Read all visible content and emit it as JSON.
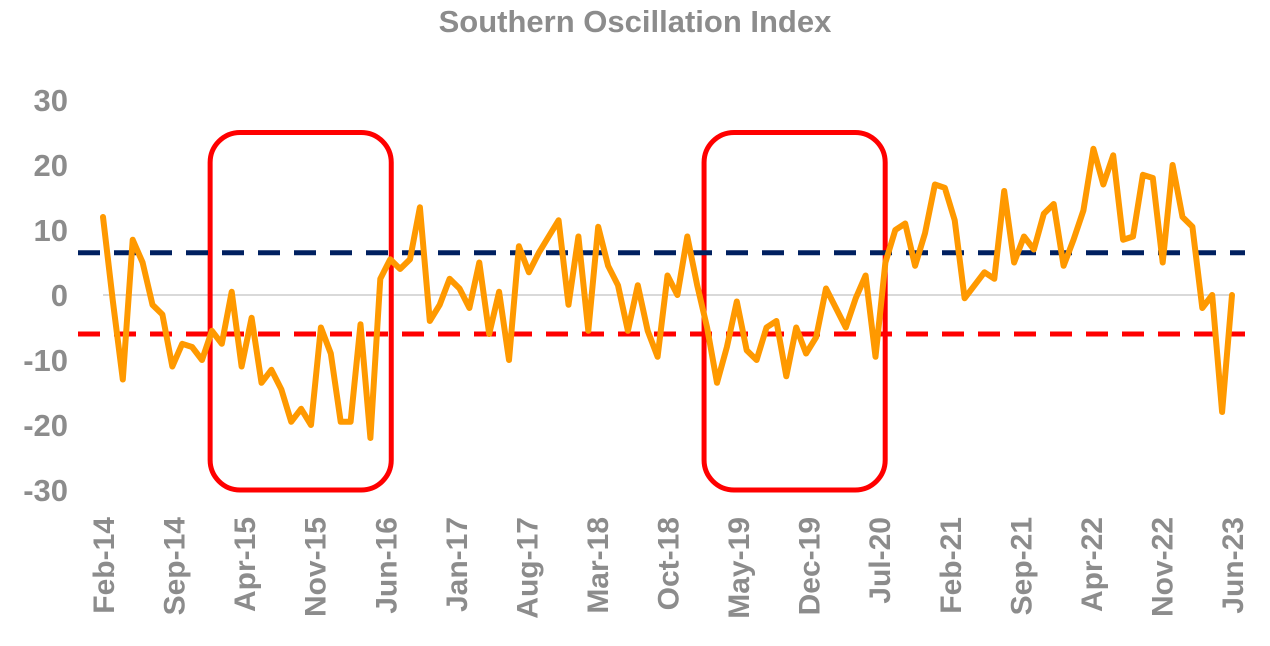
{
  "chart_data": {
    "type": "line",
    "title": "Southern Oscillation Index",
    "xlabel": "",
    "ylabel": "",
    "ylim": [
      -30,
      30
    ],
    "y_ticks": [
      30,
      20,
      10,
      0,
      -10,
      -20,
      -30
    ],
    "x_tick_labels": [
      "Feb-14",
      "Sep-14",
      "Apr-15",
      "Nov-15",
      "Jun-16",
      "Jan-17",
      "Aug-17",
      "Mar-18",
      "Oct-18",
      "May-19",
      "Dec-19",
      "Jul-20",
      "Feb-21",
      "Sep-21",
      "Apr-22",
      "Nov-22",
      "Jun-23"
    ],
    "x_start": "Feb-14",
    "x_end": "Jun-23",
    "grid": false,
    "legend": "none",
    "series": [
      {
        "color": "#FF9900",
        "values": [
          12,
          -1,
          -13,
          8.5,
          5,
          -1.5,
          -3,
          -11,
          -7.5,
          -8,
          -10,
          -5.5,
          -7.5,
          0.5,
          -11,
          -3.5,
          -13.5,
          -11.5,
          -14.5,
          -19.5,
          -17.5,
          -20,
          -5,
          -9,
          -19.5,
          -19.5,
          -4.5,
          -22,
          2.5,
          5.5,
          4,
          5.5,
          13.5,
          -4,
          -1.5,
          2.5,
          1,
          -2,
          5,
          -6,
          0.5,
          -10,
          7.5,
          3.5,
          6.5,
          9,
          11.5,
          -1.5,
          9,
          -5.5,
          10.5,
          4.5,
          1.5,
          -5.5,
          1.5,
          -5.5,
          -9.5,
          3,
          0,
          9,
          1.5,
          -5,
          -13.5,
          -8,
          -1,
          -8.5,
          -10,
          -5,
          -4,
          -12.5,
          -5,
          -9,
          -6.5,
          1,
          -2,
          -5,
          -0.5,
          3,
          -9.5,
          5,
          10,
          11,
          4.5,
          9.5,
          17,
          16.5,
          11.5,
          -0.5,
          1.5,
          3.5,
          2.5,
          16,
          5,
          9,
          7,
          12.5,
          14,
          4.5,
          8.5,
          13,
          22.5,
          17,
          21.5,
          8.5,
          9,
          18.5,
          18,
          5,
          20,
          12,
          10.5,
          -2,
          0,
          -18,
          0
        ]
      }
    ],
    "reference_lines": [
      {
        "y": 6.5,
        "color": "#002060",
        "style": "dashed"
      },
      {
        "y": -6,
        "color": "#FF0000",
        "style": "dashed"
      }
    ],
    "highlight_boxes": [
      {
        "x_start": "Apr-15",
        "x_end": "Jun-16",
        "y_top": 25,
        "y_bottom": -30,
        "color": "#FF0000"
      },
      {
        "x_start": "May-19",
        "x_end": "Jul-20",
        "y_top": 25,
        "y_bottom": -30,
        "color": "#FF0000"
      }
    ]
  }
}
